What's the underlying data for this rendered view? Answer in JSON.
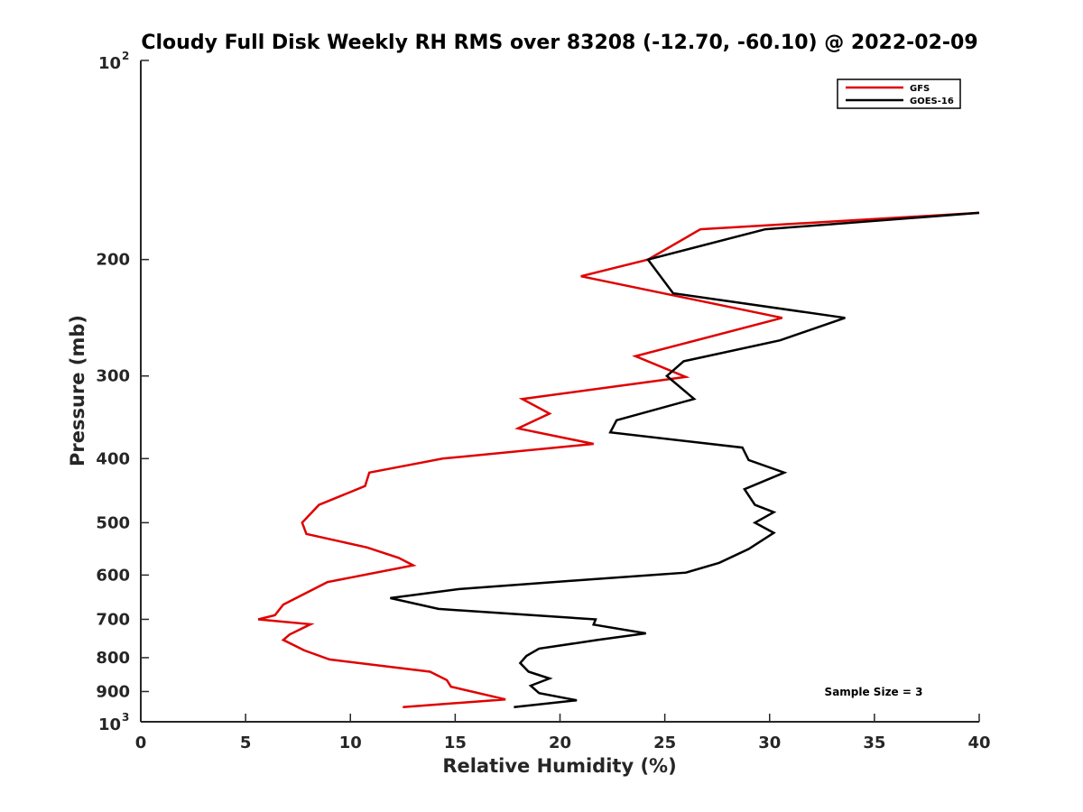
{
  "chart_data": {
    "type": "line",
    "title": "Cloudy Full Disk Weekly RH RMS over 83208 (-12.70, -60.10) @ 2022-02-09",
    "xlabel": "Relative Humidity (%)",
    "ylabel": "Pressure (mb)",
    "xlim": [
      0,
      40
    ],
    "ylim": [
      100,
      1000
    ],
    "yscale": "log",
    "y_reversed": true,
    "grid": false,
    "x_ticks": [
      0,
      5,
      10,
      15,
      20,
      25,
      30,
      35,
      40
    ],
    "x_tick_labels": [
      "0",
      "5",
      "10",
      "15",
      "20",
      "25",
      "30",
      "35",
      "40"
    ],
    "y_ticks": [
      200,
      300,
      400,
      500,
      600,
      700,
      800,
      900
    ],
    "y_tick_labels": [
      "200",
      "300",
      "400",
      "500",
      "600",
      "700",
      "800",
      "900"
    ],
    "y_end_ticks": [
      {
        "value": 100,
        "base": "10",
        "exp": "2"
      },
      {
        "value": 1000,
        "base": "10",
        "exp": "3"
      }
    ],
    "legend_position": "top-right",
    "series": [
      {
        "name": "GFS",
        "color": "#e00000",
        "points": [
          {
            "p": 170,
            "rh": 40.0
          },
          {
            "p": 180,
            "rh": 26.7
          },
          {
            "p": 200,
            "rh": 24.2
          },
          {
            "p": 212,
            "rh": 21.0
          },
          {
            "p": 245,
            "rh": 30.6
          },
          {
            "p": 280,
            "rh": 23.6
          },
          {
            "p": 301,
            "rh": 26.0
          },
          {
            "p": 325,
            "rh": 18.2
          },
          {
            "p": 342,
            "rh": 19.5
          },
          {
            "p": 360,
            "rh": 18.0
          },
          {
            "p": 380,
            "rh": 21.6
          },
          {
            "p": 400,
            "rh": 14.4
          },
          {
            "p": 420,
            "rh": 10.9
          },
          {
            "p": 440,
            "rh": 10.7
          },
          {
            "p": 470,
            "rh": 8.5
          },
          {
            "p": 500,
            "rh": 7.7
          },
          {
            "p": 520,
            "rh": 7.9
          },
          {
            "p": 545,
            "rh": 10.8
          },
          {
            "p": 565,
            "rh": 12.3
          },
          {
            "p": 580,
            "rh": 13.0
          },
          {
            "p": 615,
            "rh": 8.9
          },
          {
            "p": 665,
            "rh": 6.8
          },
          {
            "p": 690,
            "rh": 6.4
          },
          {
            "p": 700,
            "rh": 5.6
          },
          {
            "p": 712,
            "rh": 8.1
          },
          {
            "p": 738,
            "rh": 7.1
          },
          {
            "p": 752,
            "rh": 6.8
          },
          {
            "p": 780,
            "rh": 7.8
          },
          {
            "p": 805,
            "rh": 9.0
          },
          {
            "p": 840,
            "rh": 13.8
          },
          {
            "p": 865,
            "rh": 14.6
          },
          {
            "p": 885,
            "rh": 14.8
          },
          {
            "p": 925,
            "rh": 17.4
          },
          {
            "p": 950,
            "rh": 12.5
          }
        ]
      },
      {
        "name": "GOES-16",
        "color": "#000000",
        "points": [
          {
            "p": 170,
            "rh": 40.0
          },
          {
            "p": 180,
            "rh": 29.8
          },
          {
            "p": 200,
            "rh": 24.2
          },
          {
            "p": 225,
            "rh": 25.4
          },
          {
            "p": 245,
            "rh": 33.6
          },
          {
            "p": 265,
            "rh": 30.5
          },
          {
            "p": 285,
            "rh": 25.9
          },
          {
            "p": 300,
            "rh": 25.1
          },
          {
            "p": 325,
            "rh": 26.4
          },
          {
            "p": 350,
            "rh": 22.7
          },
          {
            "p": 365,
            "rh": 22.4
          },
          {
            "p": 385,
            "rh": 28.7
          },
          {
            "p": 402,
            "rh": 29.0
          },
          {
            "p": 420,
            "rh": 30.7
          },
          {
            "p": 445,
            "rh": 28.8
          },
          {
            "p": 470,
            "rh": 29.3
          },
          {
            "p": 482,
            "rh": 30.2
          },
          {
            "p": 500,
            "rh": 29.3
          },
          {
            "p": 518,
            "rh": 30.2
          },
          {
            "p": 548,
            "rh": 29.0
          },
          {
            "p": 575,
            "rh": 27.6
          },
          {
            "p": 595,
            "rh": 26.0
          },
          {
            "p": 610,
            "rh": 21.2
          },
          {
            "p": 630,
            "rh": 15.2
          },
          {
            "p": 650,
            "rh": 11.9
          },
          {
            "p": 675,
            "rh": 14.2
          },
          {
            "p": 700,
            "rh": 21.7
          },
          {
            "p": 713,
            "rh": 21.6
          },
          {
            "p": 735,
            "rh": 24.1
          },
          {
            "p": 752,
            "rh": 21.8
          },
          {
            "p": 775,
            "rh": 19.0
          },
          {
            "p": 795,
            "rh": 18.4
          },
          {
            "p": 815,
            "rh": 18.1
          },
          {
            "p": 840,
            "rh": 18.5
          },
          {
            "p": 860,
            "rh": 19.5
          },
          {
            "p": 882,
            "rh": 18.6
          },
          {
            "p": 905,
            "rh": 19.0
          },
          {
            "p": 928,
            "rh": 20.8
          },
          {
            "p": 950,
            "rh": 17.8
          }
        ]
      }
    ],
    "annotation": "Sample Size = 3"
  }
}
